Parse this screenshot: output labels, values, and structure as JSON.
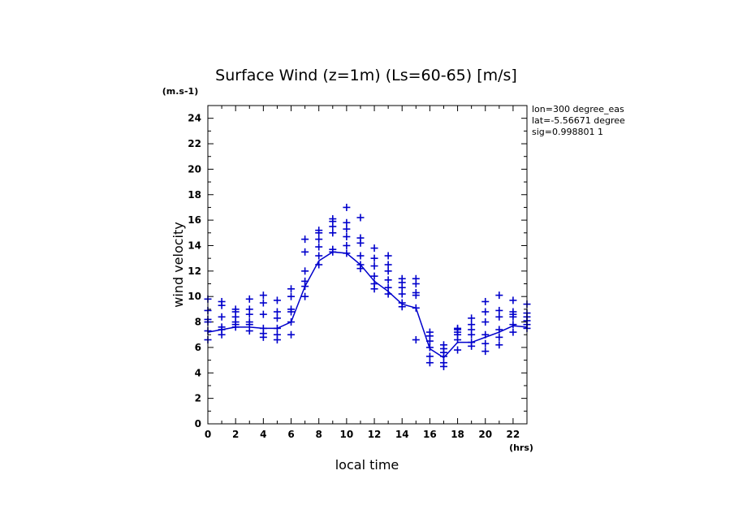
{
  "chart_data": {
    "type": "scatter",
    "title": "Surface Wind (z=1m) (Ls=60-65) [m/s]",
    "xlabel": "local time",
    "ylabel": "wind velocity",
    "xunit": "(hrs)",
    "yunit": "(m.s-1)",
    "info": [
      "lon=300 degree_eas",
      "lat=-5.56671 degree",
      "sig=0.998801 1"
    ],
    "xlim": [
      0,
      23
    ],
    "ylim": [
      0,
      25
    ],
    "xticks": [
      0,
      2,
      4,
      6,
      8,
      10,
      12,
      14,
      16,
      18,
      20,
      22
    ],
    "yticks": [
      0,
      2,
      4,
      6,
      8,
      10,
      12,
      14,
      16,
      18,
      20,
      22,
      24
    ],
    "color": "#0000cc",
    "mean_line": {
      "x": [
        0,
        1,
        2,
        3,
        4,
        5,
        6,
        7,
        8,
        9,
        10,
        11,
        12,
        13,
        14,
        15,
        16,
        17,
        18,
        19,
        20,
        21,
        22,
        23
      ],
      "y": [
        7.2,
        7.4,
        7.6,
        7.6,
        7.5,
        7.5,
        8.0,
        10.8,
        12.8,
        13.5,
        13.4,
        12.5,
        11.2,
        10.4,
        9.4,
        9.1,
        5.9,
        5.2,
        6.4,
        6.4,
        6.8,
        7.2,
        7.7,
        7.6
      ]
    },
    "series": [
      {
        "x": [
          0,
          0,
          0,
          0,
          0,
          0,
          1,
          1,
          1,
          1,
          1,
          1,
          2,
          2,
          2,
          2,
          2,
          2,
          3,
          3,
          3,
          3,
          3,
          3,
          4,
          4,
          4,
          4,
          4,
          4,
          5,
          5,
          5,
          5,
          5,
          5,
          6,
          6,
          6,
          6,
          6,
          6,
          7,
          7,
          7,
          7,
          7,
          7,
          8,
          8,
          8,
          8,
          8,
          8,
          9,
          9,
          9,
          9,
          9,
          9,
          10,
          10,
          10,
          10,
          10,
          10,
          11,
          11,
          11,
          11,
          11,
          11,
          12,
          12,
          12,
          12,
          12,
          12,
          13,
          13,
          13,
          13,
          13,
          13,
          14,
          14,
          14,
          14,
          14,
          14,
          15,
          15,
          15,
          15,
          15,
          15,
          16,
          16,
          16,
          16,
          16,
          16,
          17,
          17,
          17,
          17,
          17,
          17,
          18,
          18,
          18,
          18,
          18,
          18,
          19,
          19,
          19,
          19,
          19,
          19,
          20,
          20,
          20,
          20,
          20,
          20,
          21,
          21,
          21,
          21,
          21,
          21,
          22,
          22,
          22,
          22,
          22,
          22,
          23,
          23,
          23,
          23,
          23,
          23
        ],
        "y": [
          6.6,
          7.3,
          8.2,
          8.9,
          9.8,
          8.0,
          7.0,
          7.6,
          8.4,
          9.3,
          9.6,
          7.4,
          7.6,
          8.0,
          8.4,
          8.8,
          9.0,
          7.8,
          7.3,
          8.0,
          8.6,
          9.0,
          9.8,
          7.8,
          6.8,
          7.1,
          7.5,
          8.6,
          9.5,
          10.1,
          6.6,
          7.0,
          7.5,
          8.3,
          8.8,
          9.7,
          7.0,
          8.0,
          8.8,
          9.0,
          10.0,
          10.6,
          10.0,
          11.2,
          12.0,
          13.5,
          14.5,
          10.8,
          12.5,
          13.2,
          13.9,
          14.5,
          15.0,
          15.2,
          13.5,
          13.7,
          15.0,
          15.5,
          15.9,
          16.1,
          13.4,
          14.0,
          14.7,
          15.3,
          15.8,
          17.0,
          12.2,
          12.5,
          13.2,
          14.2,
          14.6,
          16.2,
          10.6,
          11.0,
          11.6,
          12.4,
          13.0,
          13.8,
          10.2,
          10.7,
          11.3,
          12.0,
          12.5,
          13.2,
          9.2,
          9.5,
          10.2,
          10.7,
          11.1,
          11.4,
          6.6,
          9.1,
          10.1,
          10.3,
          11.0,
          11.4,
          4.8,
          5.3,
          6.0,
          6.5,
          6.9,
          7.2,
          4.5,
          4.8,
          5.3,
          5.6,
          5.9,
          6.2,
          5.8,
          6.6,
          7.0,
          7.2,
          7.4,
          7.5,
          6.1,
          6.4,
          7.0,
          7.4,
          7.8,
          8.3,
          5.7,
          6.3,
          7.0,
          8.0,
          8.8,
          9.6,
          6.2,
          6.8,
          7.4,
          8.4,
          8.9,
          10.1,
          7.2,
          7.8,
          8.4,
          8.6,
          8.8,
          9.7,
          7.5,
          7.8,
          8.1,
          8.4,
          8.7,
          9.4
        ]
      }
    ]
  }
}
